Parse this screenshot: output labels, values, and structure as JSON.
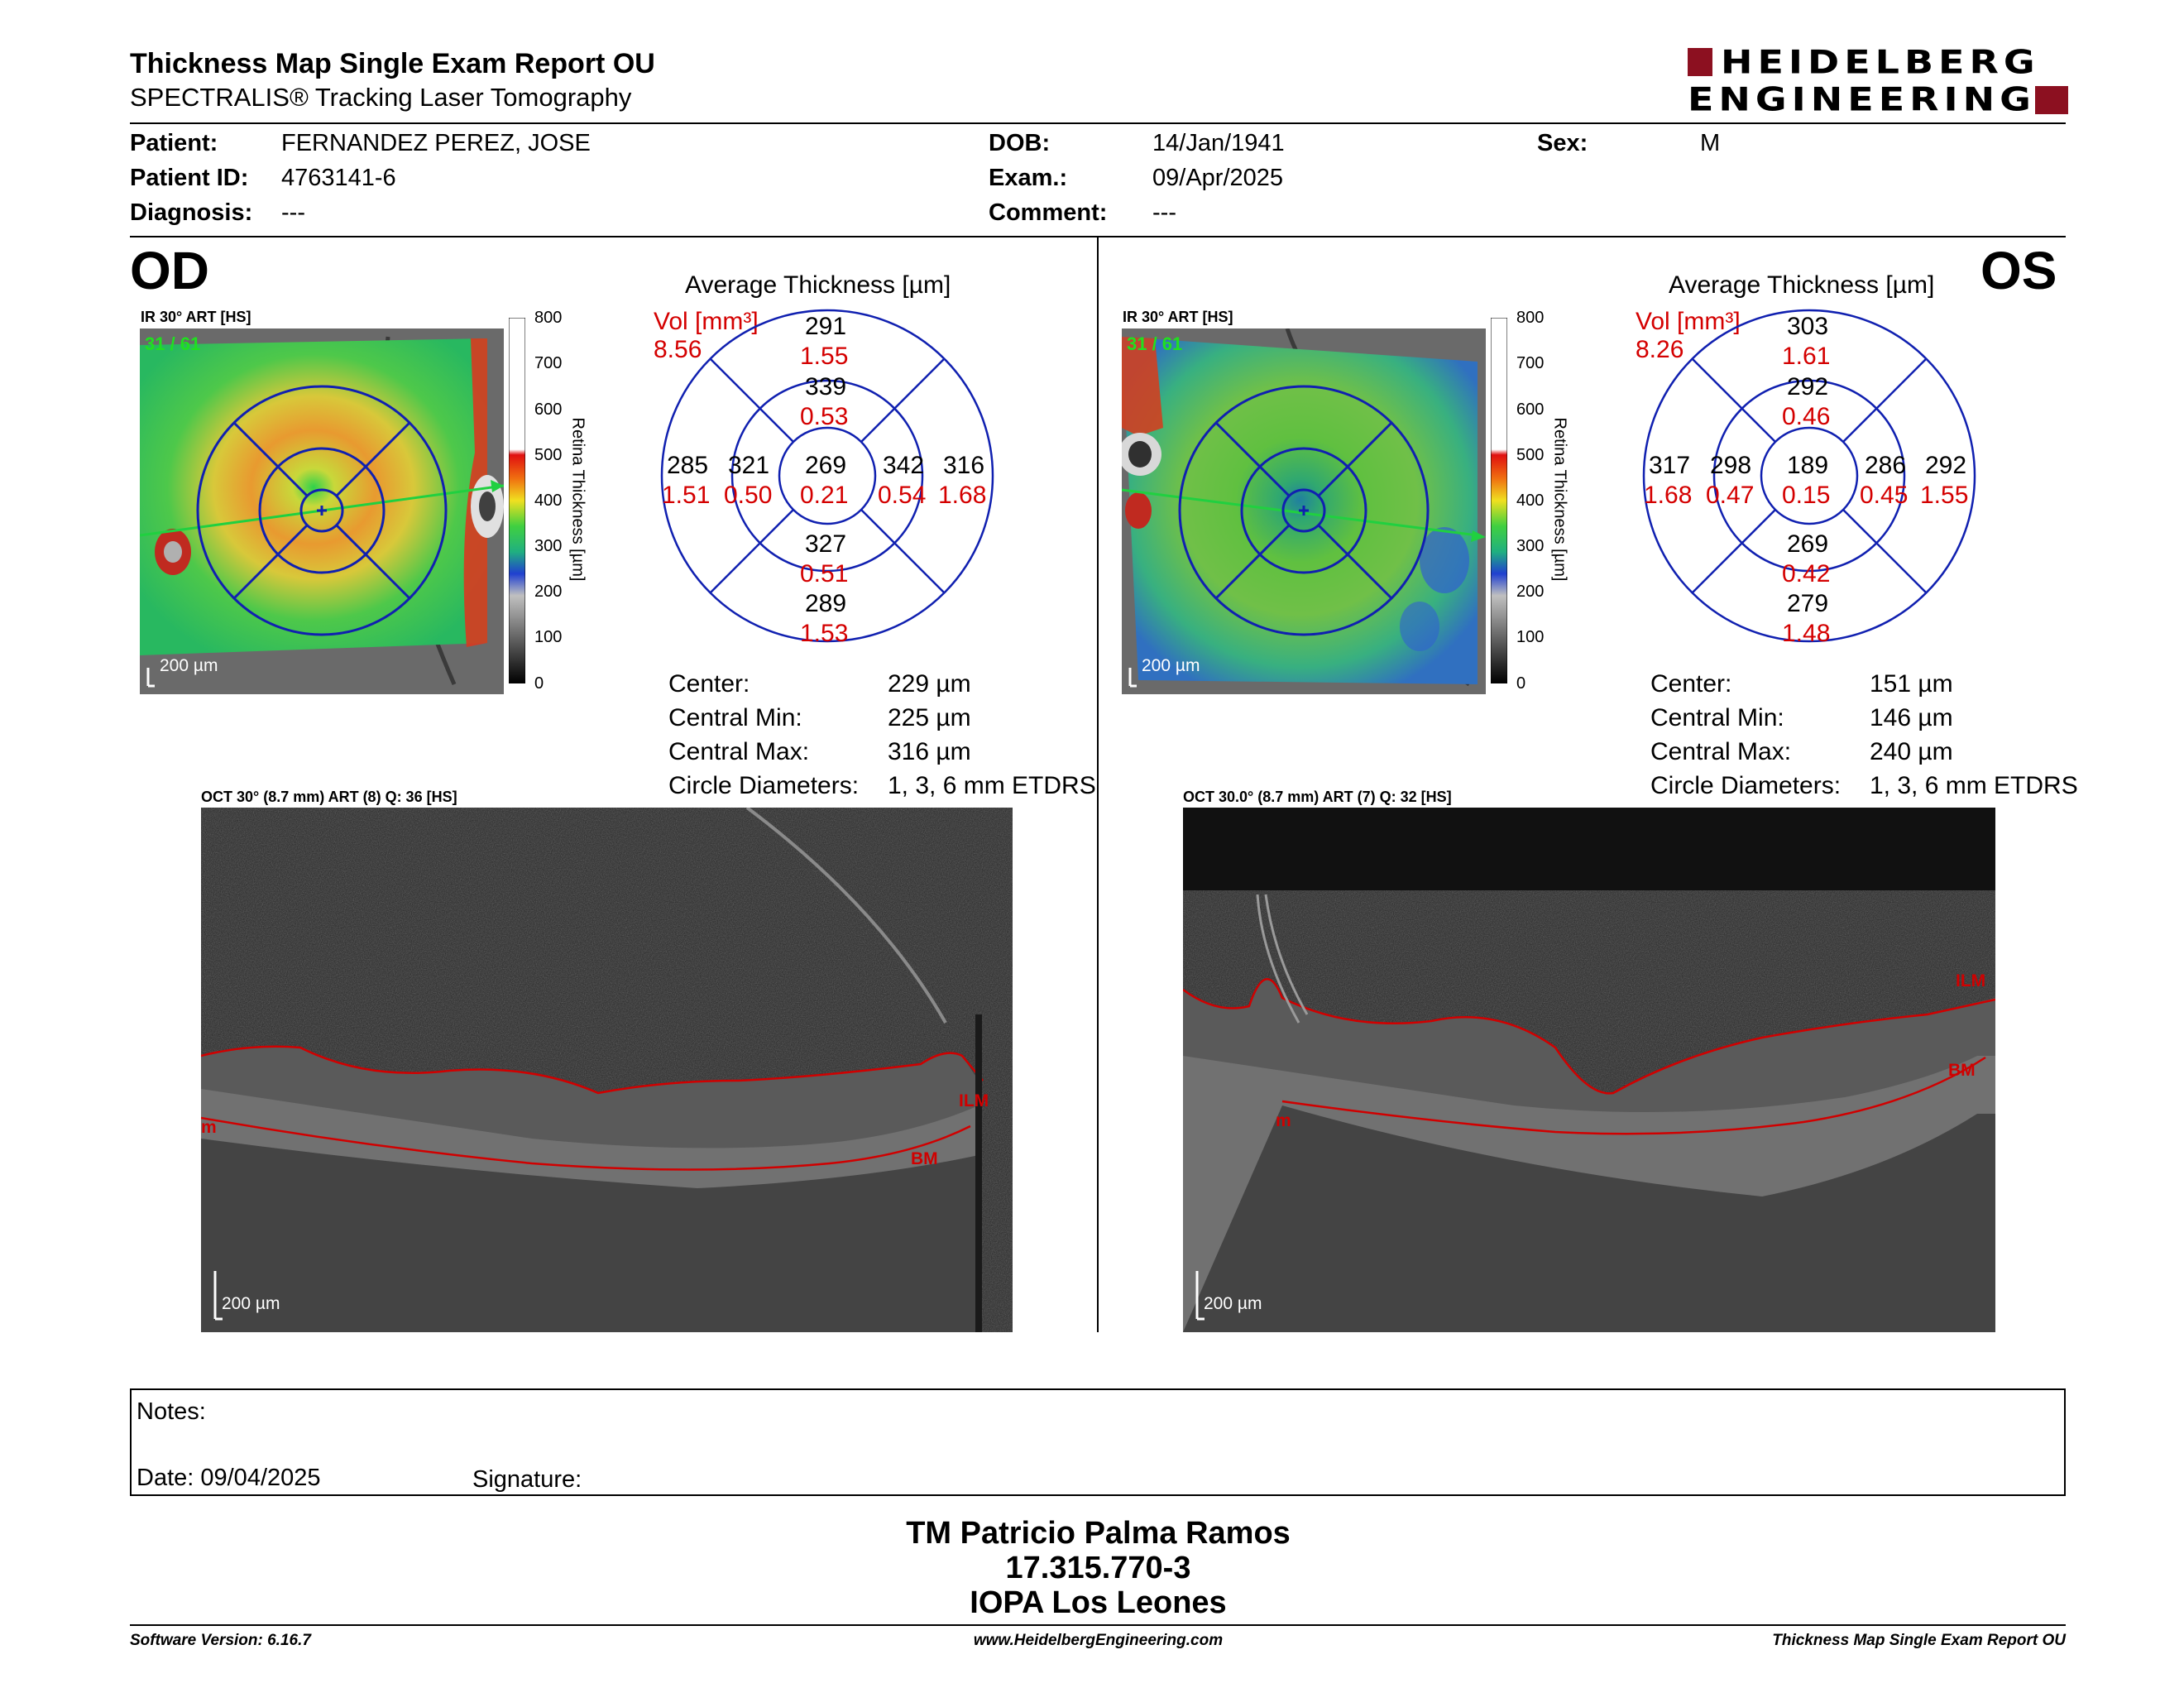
{
  "header": {
    "title": "Thickness Map Single Exam Report OU",
    "subtitle": "SPECTRALIS® Tracking Laser Tomography",
    "logo_line1": "HEIDELBERG",
    "logo_line2": "ENGINEERING"
  },
  "patient": {
    "patient_label": "Patient:",
    "patient_value": "FERNANDEZ PEREZ, JOSE",
    "id_label": "Patient ID:",
    "id_value": "4763141-6",
    "diagnosis_label": "Diagnosis:",
    "diagnosis_value": "---",
    "dob_label": "DOB:",
    "dob_value": "14/Jan/1941",
    "exam_label": "Exam.:",
    "exam_value": "09/Apr/2025",
    "comment_label": "Comment:",
    "comment_value": "---",
    "sex_label": "Sex:",
    "sex_value": "M"
  },
  "colors": {
    "accent_red": "#d40000",
    "logo_red": "#8c1020",
    "grid_blue": "#1020b0",
    "scan_line_green": "#20d040"
  },
  "colorbar": {
    "ticks": [
      "800",
      "700",
      "600",
      "500",
      "400",
      "300",
      "200",
      "100",
      "0"
    ],
    "label": "Retina  Thickness [µm]"
  },
  "od": {
    "eye_label": "OD",
    "ir_title": "IR 30° ART [HS]",
    "frame_count": "31 / 61",
    "scale_label": "200 µm",
    "avg_title": "Average Thickness [µm]",
    "vol_label": "Vol [mm³]",
    "vol_value": "8.56",
    "grid": {
      "center": {
        "t": "269",
        "v": "0.21"
      },
      "inner_top": {
        "t": "339",
        "v": "0.53"
      },
      "inner_bottom": {
        "t": "327",
        "v": "0.51"
      },
      "inner_left": {
        "t": "321",
        "v": "0.50"
      },
      "inner_right": {
        "t": "342",
        "v": "0.54"
      },
      "outer_top": {
        "t": "291",
        "v": "1.55"
      },
      "outer_bottom": {
        "t": "289",
        "v": "1.53"
      },
      "outer_left": {
        "t": "285",
        "v": "1.51"
      },
      "outer_right": {
        "t": "316",
        "v": "1.68"
      }
    },
    "stats": {
      "center_label": "Center:",
      "center_value": "229 µm",
      "min_label": "Central Min:",
      "min_value": "225 µm",
      "max_label": "Central Max:",
      "max_value": "316 µm",
      "diam_label": "Circle Diameters:",
      "diam_value": "1, 3, 6 mm ETDRS"
    },
    "oct_title": "OCT 30° (8.7 mm) ART (8) Q: 36 [HS]",
    "oct_labels": {
      "ilm": "ILM",
      "bm": "BM",
      "m": "m"
    },
    "oct_scale": "200 µm"
  },
  "os": {
    "eye_label": "OS",
    "ir_title": "IR 30° ART [HS]",
    "frame_count": "31 / 61",
    "scale_label": "200 µm",
    "avg_title": "Average Thickness [µm]",
    "vol_label": "Vol [mm³]",
    "vol_value": "8.26",
    "grid": {
      "center": {
        "t": "189",
        "v": "0.15"
      },
      "inner_top": {
        "t": "292",
        "v": "0.46"
      },
      "inner_bottom": {
        "t": "269",
        "v": "0.42"
      },
      "inner_left": {
        "t": "298",
        "v": "0.47"
      },
      "inner_right": {
        "t": "286",
        "v": "0.45"
      },
      "outer_top": {
        "t": "303",
        "v": "1.61"
      },
      "outer_bottom": {
        "t": "279",
        "v": "1.48"
      },
      "outer_left": {
        "t": "317",
        "v": "1.68"
      },
      "outer_right": {
        "t": "292",
        "v": "1.55"
      }
    },
    "stats": {
      "center_label": "Center:",
      "center_value": "151 µm",
      "min_label": "Central Min:",
      "min_value": "146 µm",
      "max_label": "Central Max:",
      "max_value": "240 µm",
      "diam_label": "Circle Diameters:",
      "diam_value": "1, 3, 6 mm ETDRS"
    },
    "oct_title": "OCT 30.0° (8.7 mm) ART (7) Q: 32 [HS]",
    "oct_labels": {
      "ilm": "ILM",
      "bm": "BM",
      "m": "m"
    },
    "oct_scale": "200 µm"
  },
  "notes": {
    "notes_label": "Notes:",
    "date_label": "Date: 09/04/2025",
    "signature_label": "Signature:"
  },
  "signoff": {
    "name": "TM Patricio Palma Ramos",
    "rut": "17.315.770-3",
    "institution": "IOPA Los Leones"
  },
  "footer": {
    "software": "Software Version: 6.16.7",
    "website": "www.HeidelbergEngineering.com",
    "report": "Thickness Map Single Exam Report OU"
  }
}
